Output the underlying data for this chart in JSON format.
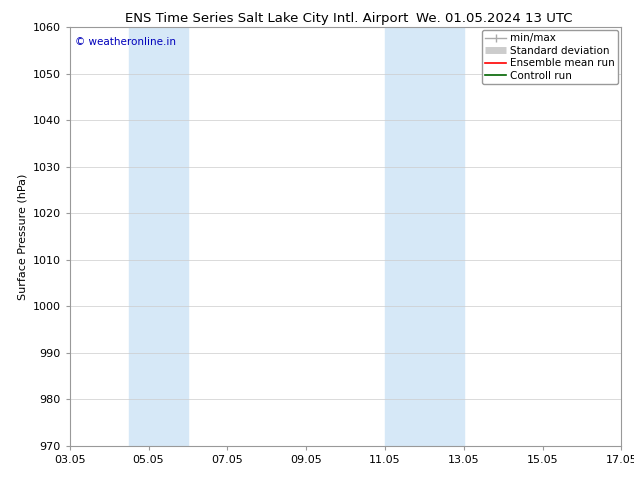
{
  "title_left": "ENS Time Series Salt Lake City Intl. Airport",
  "title_right": "We. 01.05.2024 13 UTC",
  "ylabel": "Surface Pressure (hPa)",
  "ylim": [
    970,
    1060
  ],
  "yticks": [
    970,
    980,
    990,
    1000,
    1010,
    1020,
    1030,
    1040,
    1050,
    1060
  ],
  "xtick_labels": [
    "03.05",
    "05.05",
    "07.05",
    "09.05",
    "11.05",
    "13.05",
    "15.05",
    "17.05"
  ],
  "xtick_positions": [
    0,
    2,
    4,
    6,
    8,
    10,
    12,
    14
  ],
  "shaded_regions": [
    {
      "x_start": 1.5,
      "x_end": 3.0,
      "color": "#d6e8f7"
    },
    {
      "x_start": 8.0,
      "x_end": 10.0,
      "color": "#d6e8f7"
    }
  ],
  "watermark_text": "© weatheronline.in",
  "watermark_color": "#0000bb",
  "background_color": "#ffffff",
  "legend_items": [
    {
      "label": "min/max",
      "color": "#aaaaaa",
      "lw": 1.0
    },
    {
      "label": "Standard deviation",
      "color": "#cccccc",
      "lw": 5
    },
    {
      "label": "Ensemble mean run",
      "color": "#ff0000",
      "lw": 1.2
    },
    {
      "label": "Controll run",
      "color": "#006400",
      "lw": 1.2
    }
  ],
  "grid_color": "#cccccc",
  "title_fontsize": 9.5,
  "ylabel_fontsize": 8,
  "tick_fontsize": 8,
  "legend_fontsize": 7.5,
  "watermark_fontsize": 7.5,
  "spine_color": "#999999"
}
